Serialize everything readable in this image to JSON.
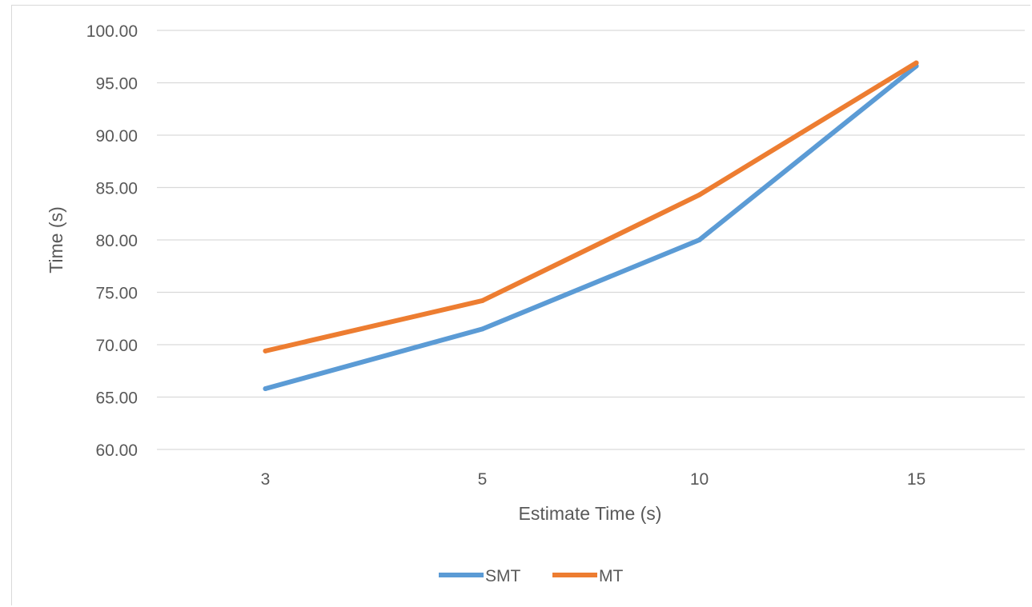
{
  "chart_data": {
    "type": "line",
    "categories": [
      "3",
      "5",
      "10",
      "15"
    ],
    "series": [
      {
        "name": "SMT",
        "values": [
          65.8,
          71.5,
          80.0,
          96.6
        ],
        "color": "#5b9bd5"
      },
      {
        "name": "MT",
        "values": [
          69.4,
          74.2,
          84.3,
          96.9
        ],
        "color": "#ed7d31"
      }
    ],
    "title": "",
    "xlabel": "Estimate Time (s)",
    "ylabel": "Time (s)",
    "ylim": [
      60,
      100
    ],
    "yticks": [
      "60.00",
      "65.00",
      "70.00",
      "75.00",
      "80.00",
      "85.00",
      "90.00",
      "95.00",
      "100.00"
    ],
    "grid": true,
    "legend_position": "bottom",
    "gridline_color": "#d9d9d9"
  }
}
